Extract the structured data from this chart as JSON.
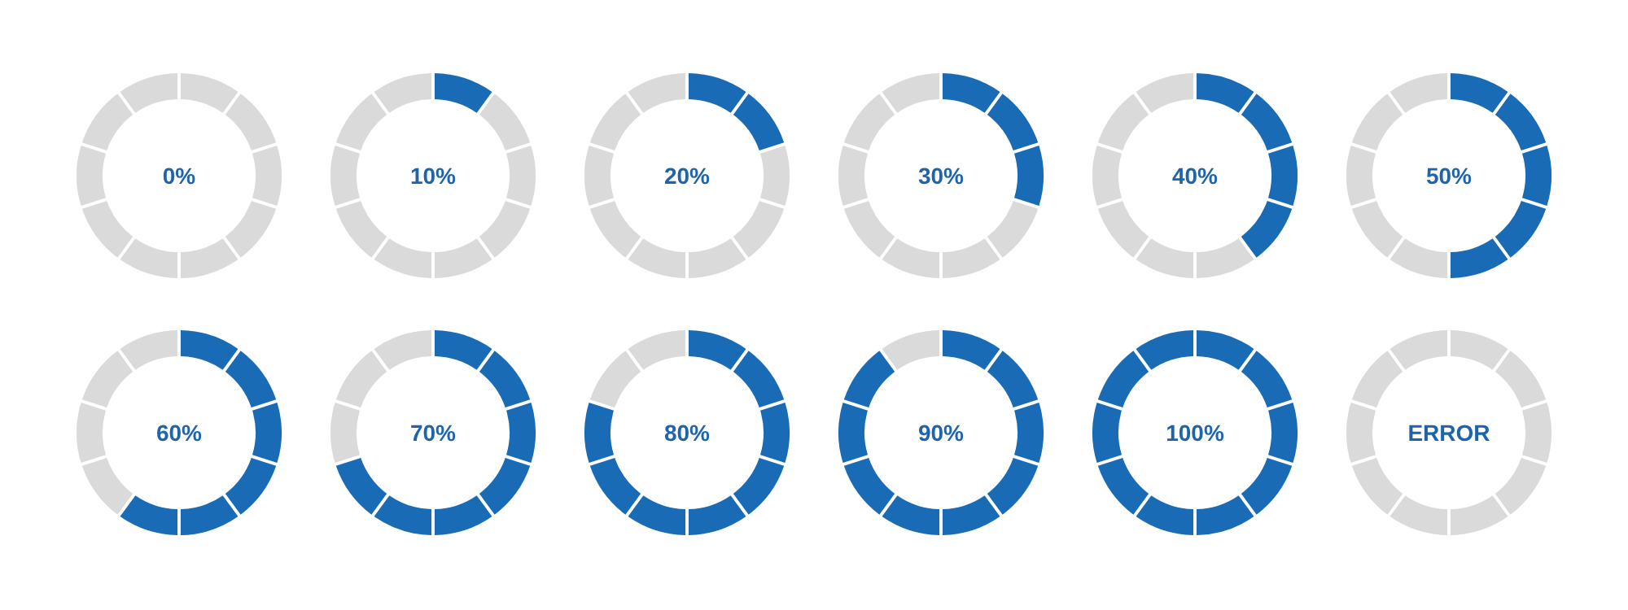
{
  "chart_data": [
    {
      "type": "donut",
      "categories": [
        null,
        null,
        null,
        null,
        null,
        null,
        null,
        null,
        null,
        null
      ],
      "values": [
        10,
        10,
        10,
        10,
        10,
        10,
        10,
        10,
        10,
        10
      ],
      "colors": [
        "#dadada",
        "#dadada",
        "#dadada",
        "#dadada",
        "#dadada",
        "#dadada",
        "#dadada",
        "#dadada",
        "#dadada",
        "#dadada"
      ],
      "annotations": [
        "0%"
      ]
    },
    {
      "type": "donut",
      "categories": [
        null,
        null,
        null,
        null,
        null,
        null,
        null,
        null,
        null,
        null
      ],
      "values": [
        10,
        10,
        10,
        10,
        10,
        10,
        10,
        10,
        10,
        10
      ],
      "colors": [
        "#1a6bb5",
        "#dadada",
        "#dadada",
        "#dadada",
        "#dadada",
        "#dadada",
        "#dadada",
        "#dadada",
        "#dadada",
        "#dadada"
      ],
      "annotations": [
        "10%"
      ]
    },
    {
      "type": "donut",
      "categories": [
        null,
        null,
        null,
        null,
        null,
        null,
        null,
        null,
        null,
        null
      ],
      "values": [
        10,
        10,
        10,
        10,
        10,
        10,
        10,
        10,
        10,
        10
      ],
      "colors": [
        "#1a6bb5",
        "#1a6bb5",
        "#dadada",
        "#dadada",
        "#dadada",
        "#dadada",
        "#dadada",
        "#dadada",
        "#dadada",
        "#dadada"
      ],
      "annotations": [
        "20%"
      ]
    },
    {
      "type": "donut",
      "categories": [
        null,
        null,
        null,
        null,
        null,
        null,
        null,
        null,
        null,
        null
      ],
      "values": [
        10,
        10,
        10,
        10,
        10,
        10,
        10,
        10,
        10,
        10
      ],
      "colors": [
        "#1a6bb5",
        "#1a6bb5",
        "#1a6bb5",
        "#dadada",
        "#dadada",
        "#dadada",
        "#dadada",
        "#dadada",
        "#dadada",
        "#dadada"
      ],
      "annotations": [
        "30%"
      ]
    },
    {
      "type": "donut",
      "categories": [
        null,
        null,
        null,
        null,
        null,
        null,
        null,
        null,
        null,
        null
      ],
      "values": [
        10,
        10,
        10,
        10,
        10,
        10,
        10,
        10,
        10,
        10
      ],
      "colors": [
        "#1a6bb5",
        "#1a6bb5",
        "#1a6bb5",
        "#1a6bb5",
        "#dadada",
        "#dadada",
        "#dadada",
        "#dadada",
        "#dadada",
        "#dadada"
      ],
      "annotations": [
        "40%"
      ]
    },
    {
      "type": "donut",
      "categories": [
        null,
        null,
        null,
        null,
        null,
        null,
        null,
        null,
        null,
        null
      ],
      "values": [
        10,
        10,
        10,
        10,
        10,
        10,
        10,
        10,
        10,
        10
      ],
      "colors": [
        "#1a6bb5",
        "#1a6bb5",
        "#1a6bb5",
        "#1a6bb5",
        "#1a6bb5",
        "#dadada",
        "#dadada",
        "#dadada",
        "#dadada",
        "#dadada"
      ],
      "annotations": [
        "50%"
      ]
    },
    {
      "type": "donut",
      "categories": [
        null,
        null,
        null,
        null,
        null,
        null,
        null,
        null,
        null,
        null
      ],
      "values": [
        10,
        10,
        10,
        10,
        10,
        10,
        10,
        10,
        10,
        10
      ],
      "colors": [
        "#1a6bb5",
        "#1a6bb5",
        "#1a6bb5",
        "#1a6bb5",
        "#1a6bb5",
        "#1a6bb5",
        "#dadada",
        "#dadada",
        "#dadada",
        "#dadada"
      ],
      "annotations": [
        "60%"
      ]
    },
    {
      "type": "donut",
      "categories": [
        null,
        null,
        null,
        null,
        null,
        null,
        null,
        null,
        null,
        null
      ],
      "values": [
        10,
        10,
        10,
        10,
        10,
        10,
        10,
        10,
        10,
        10
      ],
      "colors": [
        "#1a6bb5",
        "#1a6bb5",
        "#1a6bb5",
        "#1a6bb5",
        "#1a6bb5",
        "#1a6bb5",
        "#1a6bb5",
        "#dadada",
        "#dadada",
        "#dadada"
      ],
      "annotations": [
        "70%"
      ]
    },
    {
      "type": "donut",
      "categories": [
        null,
        null,
        null,
        null,
        null,
        null,
        null,
        null,
        null,
        null
      ],
      "values": [
        10,
        10,
        10,
        10,
        10,
        10,
        10,
        10,
        10,
        10
      ],
      "colors": [
        "#1a6bb5",
        "#1a6bb5",
        "#1a6bb5",
        "#1a6bb5",
        "#1a6bb5",
        "#1a6bb5",
        "#1a6bb5",
        "#1a6bb5",
        "#dadada",
        "#dadada"
      ],
      "annotations": [
        "80%"
      ]
    },
    {
      "type": "donut",
      "categories": [
        null,
        null,
        null,
        null,
        null,
        null,
        null,
        null,
        null,
        null
      ],
      "values": [
        10,
        10,
        10,
        10,
        10,
        10,
        10,
        10,
        10,
        10
      ],
      "colors": [
        "#1a6bb5",
        "#1a6bb5",
        "#1a6bb5",
        "#1a6bb5",
        "#1a6bb5",
        "#1a6bb5",
        "#1a6bb5",
        "#1a6bb5",
        "#1a6bb5",
        "#dadada"
      ],
      "annotations": [
        "90%"
      ]
    },
    {
      "type": "donut",
      "categories": [
        null,
        null,
        null,
        null,
        null,
        null,
        null,
        null,
        null,
        null
      ],
      "values": [
        10,
        10,
        10,
        10,
        10,
        10,
        10,
        10,
        10,
        10
      ],
      "colors": [
        "#1a6bb5",
        "#1a6bb5",
        "#1a6bb5",
        "#1a6bb5",
        "#1a6bb5",
        "#1a6bb5",
        "#1a6bb5",
        "#1a6bb5",
        "#1a6bb5",
        "#1a6bb5"
      ],
      "annotations": [
        "100%"
      ]
    },
    {
      "type": "donut",
      "categories": [
        null,
        null,
        null,
        null,
        null,
        null,
        null,
        null,
        null,
        null
      ],
      "values": [
        10,
        10,
        10,
        10,
        10,
        10,
        10,
        10,
        10,
        10
      ],
      "colors": [
        "#dadada",
        "#dadada",
        "#dadada",
        "#dadada",
        "#dadada",
        "#dadada",
        "#dadada",
        "#dadada",
        "#dadada",
        "#dadada"
      ],
      "annotations": [
        "ERROR"
      ]
    }
  ]
}
